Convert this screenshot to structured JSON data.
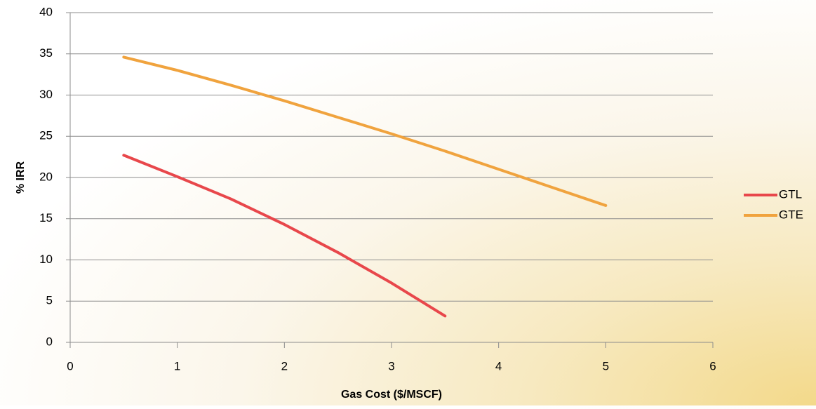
{
  "chart_data": {
    "type": "line",
    "x_label": "Gas Cost ($/MSCF)",
    "y_label": "% IRR",
    "series": [
      {
        "name": "GTL",
        "color": "#e8474b",
        "x": [
          0.5,
          1,
          1.5,
          2,
          2.5,
          3,
          3.5
        ],
        "values": [
          22.7,
          20.1,
          17.4,
          14.3,
          10.9,
          7.2,
          3.2
        ]
      },
      {
        "name": "GTE",
        "color": "#f0a33e",
        "x": [
          0.5,
          1,
          1.5,
          2,
          2.5,
          3,
          3.5,
          4,
          4.5,
          5
        ],
        "values": [
          34.6,
          33.0,
          31.2,
          29.3,
          27.3,
          25.3,
          23.2,
          21.0,
          18.8,
          16.6
        ]
      }
    ],
    "xlim": [
      0,
      6
    ],
    "xticks": [
      0,
      1,
      2,
      3,
      4,
      5,
      6
    ],
    "ylim": [
      0,
      40
    ],
    "yticks": [
      0,
      5,
      10,
      15,
      20,
      25,
      30,
      35,
      40
    ],
    "grid": true,
    "legend": "right"
  }
}
